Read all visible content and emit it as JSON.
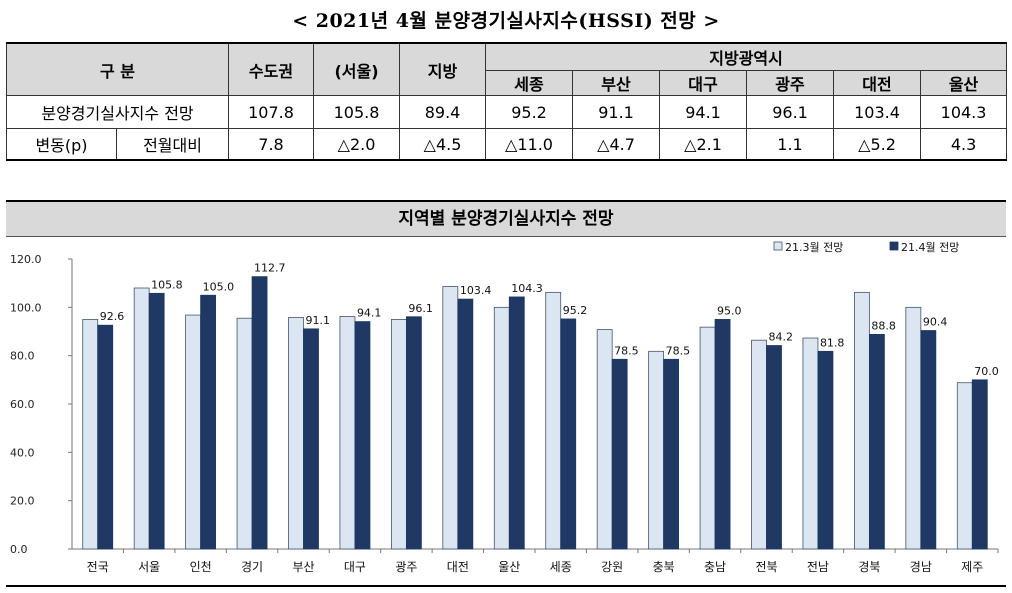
{
  "title": "< 2021년 4월 분양경기실사지수(HSSI) 전망 >",
  "table": {
    "header_category": "구    분",
    "col_capital": "수도권",
    "col_seoul": "(서울)",
    "col_region": "지방",
    "group_metro": "지방광역시",
    "metro_cols": [
      "세종",
      "부산",
      "대구",
      "광주",
      "대전",
      "울산"
    ],
    "row1_label": "분양경기실사지수 전망",
    "row1_values": [
      "107.8",
      "105.8",
      "89.4",
      "95.2",
      "91.1",
      "94.1",
      "96.1",
      "103.4",
      "104.3"
    ],
    "row2_label": "변동(p)",
    "row2_sublabel": "전월대비",
    "row2_values": [
      "7.8",
      "△2.0",
      "△4.5",
      "△11.0",
      "△4.7",
      "△2.1",
      "1.1",
      "△5.2",
      "4.3"
    ]
  },
  "chart_data": {
    "type": "bar",
    "title": "지역별 분양경기실사지수 전망",
    "categories": [
      "전국",
      "서울",
      "인천",
      "경기",
      "부산",
      "대구",
      "광주",
      "대전",
      "울산",
      "세종",
      "강원",
      "충북",
      "충남",
      "전북",
      "전남",
      "경북",
      "경남",
      "제주"
    ],
    "series": [
      {
        "name": "21.3월 전망",
        "color": "#dce6f2",
        "values": [
          95.0,
          108.0,
          96.8,
          95.5,
          95.8,
          96.2,
          95.0,
          108.6,
          100.0,
          106.2,
          90.8,
          81.8,
          91.8,
          86.4,
          87.3,
          106.2,
          100.0,
          68.8
        ]
      },
      {
        "name": "21.4월 전망",
        "color": "#1f3864",
        "values": [
          92.6,
          105.8,
          105.0,
          112.7,
          91.1,
          94.1,
          96.1,
          103.4,
          104.3,
          95.2,
          78.5,
          78.5,
          95.0,
          84.2,
          81.8,
          88.8,
          90.4,
          70.0
        ]
      }
    ],
    "labels_series2": [
      "92.6",
      "105.8",
      "105.0",
      "112.7",
      "91.1",
      "94.1",
      "96.1",
      "103.4",
      "104.3",
      "95.2",
      "78.5",
      "78.5",
      "95.0",
      "84.2",
      "81.8",
      "88.8",
      "90.4",
      "70.0"
    ],
    "yticks": [
      "0.0",
      "20.0",
      "40.0",
      "60.0",
      "80.0",
      "100.0",
      "120.0"
    ],
    "ylim": [
      0,
      120
    ],
    "grid": false,
    "legend_position": "top-right"
  }
}
